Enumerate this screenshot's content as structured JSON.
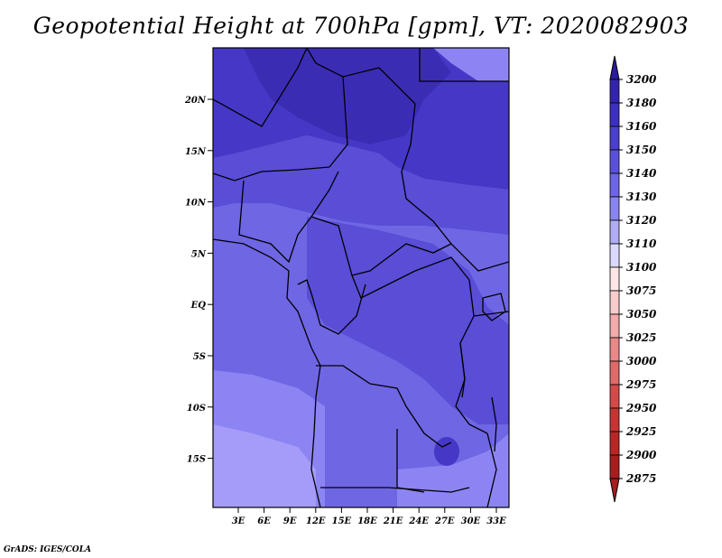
{
  "title": "Geopotential Height at 700hPa [gpm], VT: 2020082903",
  "footer": "GrADS: IGES/COLA",
  "map": {
    "lat_labels": [
      "20N",
      "15N",
      "10N",
      "5N",
      "EQ",
      "5S",
      "10S",
      "15S"
    ],
    "lon_labels": [
      "3E",
      "6E",
      "9E",
      "12E",
      "15E",
      "18E",
      "21E",
      "24E",
      "27E",
      "30E",
      "33E"
    ],
    "field_colors": {
      "deep": "#3a2db4",
      "dark": "#4638c6",
      "mid": "#5a4dd6",
      "light": "#6f66e4",
      "lighter": "#8c84f2",
      "palest": "#a49cf8"
    },
    "border_color": "#000000"
  },
  "colorbar": {
    "levels": [
      "3200",
      "3180",
      "3160",
      "3150",
      "3140",
      "3130",
      "3120",
      "3110",
      "3100",
      "3075",
      "3050",
      "3025",
      "3000",
      "2975",
      "2950",
      "2925",
      "2900",
      "2875"
    ],
    "colors": [
      "#2a1d9c",
      "#3324b0",
      "#3c2fc2",
      "#4b3fd0",
      "#5b50dc",
      "#6d65e6",
      "#8a84ee",
      "#b1adf4",
      "#dcdafc",
      "#fce6e6",
      "#f8cccc",
      "#f2aaaa",
      "#e88888",
      "#de6a6a",
      "#d44a4a",
      "#c83434",
      "#b82626",
      "#a61e1e"
    ]
  }
}
